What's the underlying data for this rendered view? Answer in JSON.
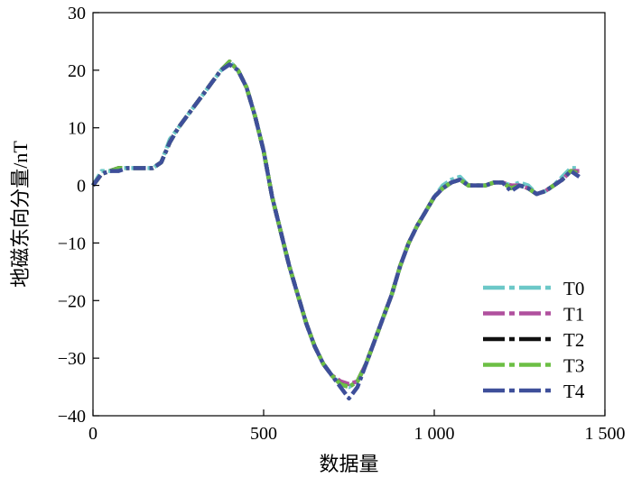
{
  "chart_data": {
    "type": "line",
    "xlabel": "数据量",
    "ylabel": "地磁东向分量/nT",
    "xlim": [
      0,
      1500
    ],
    "ylim": [
      -40,
      30
    ],
    "xticks": [
      0,
      500,
      1000,
      1500
    ],
    "xtick_labels": [
      "0",
      "500",
      "1 000",
      "1 500"
    ],
    "yticks": [
      -40,
      -30,
      -20,
      -10,
      0,
      10,
      20,
      30
    ],
    "ytick_labels": [
      "−40",
      "−30",
      "−20",
      "−10",
      "0",
      "10",
      "20",
      "30"
    ],
    "grid": false,
    "legend_position": "bottom-right",
    "x": [
      0,
      25,
      50,
      75,
      100,
      125,
      150,
      175,
      200,
      225,
      250,
      275,
      300,
      325,
      350,
      375,
      400,
      425,
      450,
      475,
      500,
      525,
      550,
      575,
      600,
      625,
      650,
      675,
      700,
      725,
      750,
      775,
      800,
      825,
      850,
      875,
      900,
      925,
      950,
      975,
      1000,
      1025,
      1050,
      1075,
      1100,
      1125,
      1150,
      1175,
      1200,
      1225,
      1250,
      1275,
      1300,
      1325,
      1350,
      1375,
      1400,
      1425
    ],
    "series": [
      {
        "name": "T0",
        "color": "#6cc8c8",
        "values": [
          0,
          2.5,
          2.5,
          3,
          3,
          3,
          3,
          3,
          4,
          8,
          10,
          12,
          14,
          16,
          18,
          20,
          21.5,
          20,
          17,
          12,
          6,
          -2,
          -8,
          -14,
          -19,
          -24,
          -28,
          -31,
          -33,
          -34.5,
          -35,
          -34,
          -31,
          -27,
          -23,
          -19,
          -14,
          -10,
          -7,
          -4.5,
          -2,
          0,
          1,
          1.5,
          0,
          0,
          0,
          0.5,
          0.5,
          0,
          0.5,
          0,
          -1.5,
          -1,
          0,
          1.5,
          3,
          3
        ]
      },
      {
        "name": "T1",
        "color": "#b0509e",
        "values": [
          0,
          2,
          2.5,
          3,
          3,
          3,
          3,
          3,
          4,
          7.5,
          10,
          12,
          14,
          16,
          18,
          20,
          21.5,
          20,
          17,
          12,
          6,
          -2,
          -8,
          -14,
          -19,
          -24,
          -28,
          -31,
          -33,
          -34,
          -34.5,
          -34,
          -31,
          -27,
          -23,
          -19,
          -14,
          -10,
          -7,
          -4.5,
          -2,
          -0.5,
          0.5,
          1,
          0,
          0,
          0,
          0.5,
          0.5,
          0,
          0,
          -0.5,
          -1.5,
          -1,
          0,
          1,
          2.5,
          2.5
        ]
      },
      {
        "name": "T2",
        "color": "#111111",
        "values": [
          0,
          2,
          2.5,
          3,
          3,
          3,
          3,
          3,
          4,
          7.5,
          10,
          12,
          14,
          16,
          18,
          20,
          21.5,
          20,
          17,
          12,
          6,
          -2,
          -8,
          -14,
          -19,
          -24,
          -28,
          -31,
          -33,
          -34.5,
          -35,
          -34,
          -31,
          -27,
          -23,
          -19,
          -14,
          -10,
          -7,
          -4.5,
          -2,
          -0.5,
          0.5,
          1,
          0,
          0,
          0,
          0.5,
          0.5,
          -0.5,
          0,
          -0.5,
          -1.5,
          -1,
          0,
          1,
          2.5,
          2
        ]
      },
      {
        "name": "T3",
        "color": "#6cbf45",
        "values": [
          0,
          2,
          2.5,
          3,
          3,
          3,
          3,
          3,
          4,
          7.5,
          10,
          12,
          14,
          16,
          18,
          20,
          21.5,
          20,
          17,
          12,
          6,
          -2,
          -8,
          -14,
          -19,
          -24,
          -28,
          -31,
          -33,
          -34.5,
          -35,
          -34,
          -31,
          -27,
          -23,
          -19,
          -14,
          -10,
          -7,
          -4.5,
          -2,
          -0.5,
          0.5,
          1,
          0,
          0,
          0,
          0.5,
          0.5,
          -0.5,
          0,
          -0.5,
          -1.5,
          -1,
          0,
          1,
          2.5,
          2
        ]
      },
      {
        "name": "T4",
        "color": "#3e4f9a",
        "values": [
          0,
          2,
          2.5,
          2.5,
          3,
          3,
          3,
          3,
          4,
          7.5,
          10,
          12,
          14,
          16,
          18,
          20,
          21,
          20,
          17,
          12,
          6,
          -2,
          -8,
          -14,
          -19,
          -24,
          -28,
          -31,
          -33,
          -35,
          -37,
          -35,
          -31,
          -27,
          -23,
          -19,
          -14,
          -10,
          -7,
          -4.5,
          -2,
          -0.5,
          0.5,
          1,
          0,
          0,
          0,
          0.5,
          0.5,
          -1,
          0,
          -0.5,
          -1.5,
          -1,
          0,
          1,
          2.5,
          1.5
        ]
      }
    ]
  }
}
